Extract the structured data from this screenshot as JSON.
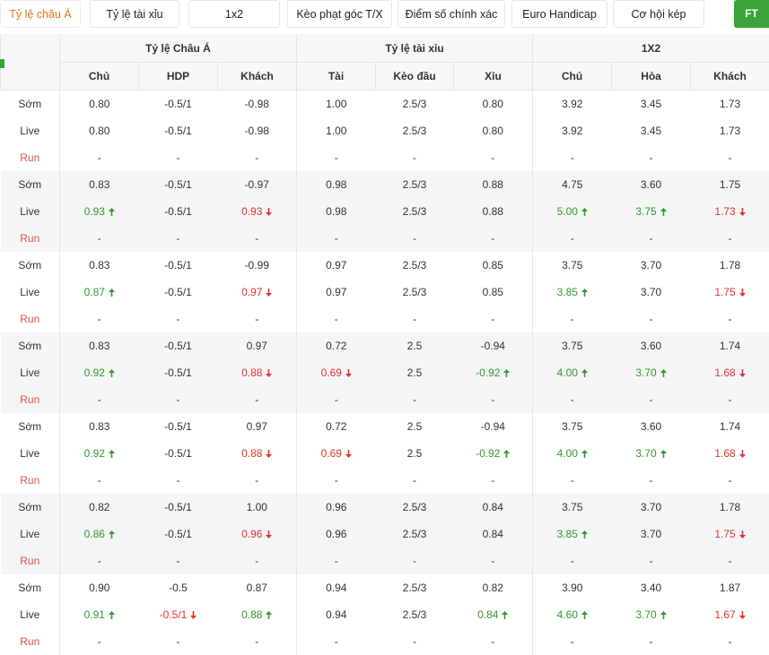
{
  "tabs": [
    "Tỷ lệ châu Á",
    "Tỷ lệ tài xỉu",
    "1x2",
    "Kèo phạt góc T/X",
    "Điểm số chính xác",
    "Euro Handicap",
    "Cơ hội kép"
  ],
  "ft_button": "FT",
  "table": {
    "group_headers": [
      "Tỷ lệ Châu Á",
      "Tỷ lệ tài xỉu",
      "1X2"
    ],
    "column_headers": [
      "Chủ",
      "HDP",
      "Khách",
      "Tài",
      "Kèo đầu",
      "Xỉu",
      "Chủ",
      "Hòa",
      "Khách"
    ],
    "groups": [
      {
        "rows": [
          {
            "label": "Sớm",
            "cells": [
              "0.80",
              "-0.5/1",
              "-0.98",
              "1.00",
              "2.5/3",
              "0.80",
              "3.92",
              "3.45",
              "1.73"
            ]
          },
          {
            "label": "Live",
            "cells": [
              "0.80",
              "-0.5/1",
              "-0.98",
              "1.00",
              "2.5/3",
              "0.80",
              "3.92",
              "3.45",
              "1.73"
            ]
          },
          {
            "label": "Run",
            "cells": [
              "-",
              "-",
              "-",
              "-",
              "-",
              "-",
              "-",
              "-",
              "-"
            ]
          }
        ]
      },
      {
        "rows": [
          {
            "label": "Sớm",
            "cells": [
              "0.83",
              "-0.5/1",
              "-0.97",
              "0.98",
              "2.5/3",
              "0.88",
              "4.75",
              "3.60",
              "1.75"
            ]
          },
          {
            "label": "Live",
            "cells": [
              {
                "text": "0.93",
                "trend": "up"
              },
              "-0.5/1",
              {
                "text": "0.93",
                "trend": "down"
              },
              "0.98",
              "2.5/3",
              "0.88",
              {
                "text": "5.00",
                "trend": "up"
              },
              {
                "text": "3.75",
                "trend": "up"
              },
              {
                "text": "1.73",
                "trend": "down"
              }
            ]
          },
          {
            "label": "Run",
            "cells": [
              "-",
              "-",
              "-",
              "-",
              "-",
              "-",
              "-",
              "-",
              "-"
            ]
          }
        ]
      },
      {
        "rows": [
          {
            "label": "Sớm",
            "cells": [
              "0.83",
              "-0.5/1",
              "-0.99",
              "0.97",
              "2.5/3",
              "0.85",
              "3.75",
              "3.70",
              "1.78"
            ]
          },
          {
            "label": "Live",
            "cells": [
              {
                "text": "0.87",
                "trend": "up"
              },
              "-0.5/1",
              {
                "text": "0.97",
                "trend": "down"
              },
              "0.97",
              "2.5/3",
              "0.85",
              {
                "text": "3.85",
                "trend": "up"
              },
              "3.70",
              {
                "text": "1.75",
                "trend": "down"
              }
            ]
          },
          {
            "label": "Run",
            "cells": [
              "-",
              "-",
              "-",
              "-",
              "-",
              "-",
              "-",
              "-",
              "-"
            ]
          }
        ]
      },
      {
        "rows": [
          {
            "label": "Sớm",
            "cells": [
              "0.83",
              "-0.5/1",
              "0.97",
              "0.72",
              "2.5",
              "-0.94",
              "3.75",
              "3.60",
              "1.74"
            ]
          },
          {
            "label": "Live",
            "cells": [
              {
                "text": "0.92",
                "trend": "up"
              },
              "-0.5/1",
              {
                "text": "0.88",
                "trend": "down"
              },
              {
                "text": "0.69",
                "trend": "down"
              },
              "2.5",
              {
                "text": "-0.92",
                "trend": "up"
              },
              {
                "text": "4.00",
                "trend": "up"
              },
              {
                "text": "3.70",
                "trend": "up"
              },
              {
                "text": "1.68",
                "trend": "down"
              }
            ]
          },
          {
            "label": "Run",
            "cells": [
              "-",
              "-",
              "-",
              "-",
              "-",
              "-",
              "-",
              "-",
              "-"
            ]
          }
        ]
      },
      {
        "rows": [
          {
            "label": "Sớm",
            "cells": [
              "0.83",
              "-0.5/1",
              "0.97",
              "0.72",
              "2.5",
              "-0.94",
              "3.75",
              "3.60",
              "1.74"
            ]
          },
          {
            "label": "Live",
            "cells": [
              {
                "text": "0.92",
                "trend": "up"
              },
              "-0.5/1",
              {
                "text": "0.88",
                "trend": "down"
              },
              {
                "text": "0.69",
                "trend": "down"
              },
              "2.5",
              {
                "text": "-0.92",
                "trend": "up"
              },
              {
                "text": "4.00",
                "trend": "up"
              },
              {
                "text": "3.70",
                "trend": "up"
              },
              {
                "text": "1.68",
                "trend": "down"
              }
            ]
          },
          {
            "label": "Run",
            "cells": [
              "-",
              "-",
              "-",
              "-",
              "-",
              "-",
              "-",
              "-",
              "-"
            ]
          }
        ]
      },
      {
        "rows": [
          {
            "label": "Sớm",
            "cells": [
              "0.82",
              "-0.5/1",
              "1.00",
              "0.96",
              "2.5/3",
              "0.84",
              "3.75",
              "3.70",
              "1.78"
            ]
          },
          {
            "label": "Live",
            "cells": [
              {
                "text": "0.86",
                "trend": "up"
              },
              "-0.5/1",
              {
                "text": "0.96",
                "trend": "down"
              },
              "0.96",
              "2.5/3",
              "0.84",
              {
                "text": "3.85",
                "trend": "up"
              },
              "3.70",
              {
                "text": "1.75",
                "trend": "down"
              }
            ]
          },
          {
            "label": "Run",
            "cells": [
              "-",
              "-",
              "-",
              "-",
              "-",
              "-",
              "-",
              "-",
              "-"
            ]
          }
        ]
      },
      {
        "rows": [
          {
            "label": "Sớm",
            "cells": [
              "0.90",
              "-0.5",
              "0.87",
              "0.94",
              "2.5/3",
              "0.82",
              "3.90",
              "3.40",
              "1.87"
            ]
          },
          {
            "label": "Live",
            "cells": [
              {
                "text": "0.91",
                "trend": "up"
              },
              {
                "text": "-0.5/1",
                "trend": "down"
              },
              {
                "text": "0.88",
                "trend": "up"
              },
              "0.94",
              "2.5/3",
              {
                "text": "0.84",
                "trend": "up"
              },
              {
                "text": "4.60",
                "trend": "up"
              },
              {
                "text": "3.70",
                "trend": "up"
              },
              {
                "text": "1.67",
                "trend": "down"
              }
            ]
          },
          {
            "label": "Run",
            "cells": [
              "-",
              "-",
              "-",
              "-",
              "-",
              "-",
              "-",
              "-",
              "-"
            ]
          }
        ]
      }
    ]
  }
}
